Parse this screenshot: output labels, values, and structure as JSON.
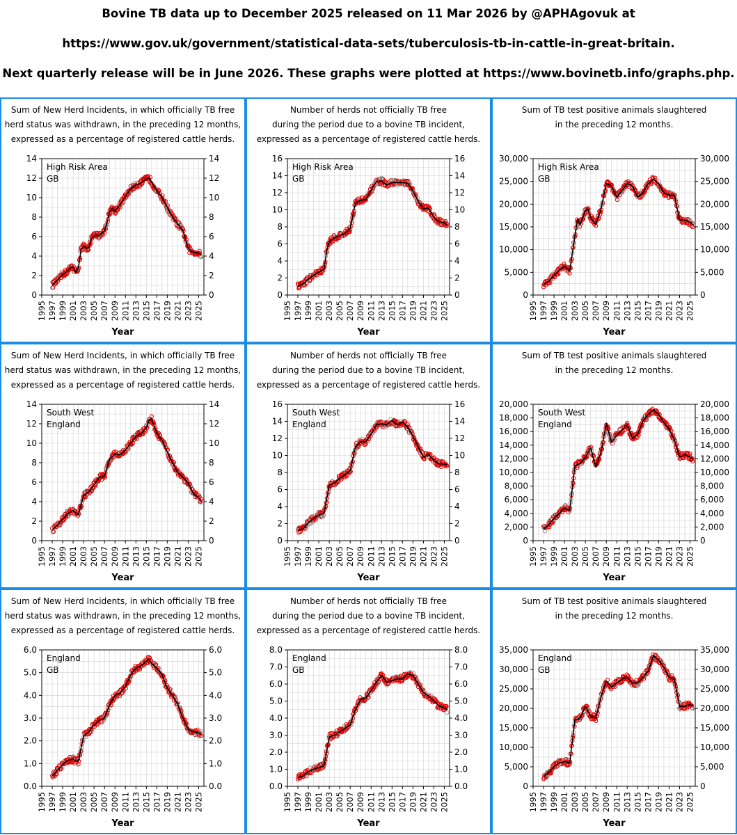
{
  "header": {
    "line1": "Bovine TB data up to December 2025 released on 11 Mar 2026 by @APHAgovuk at",
    "line2": "https://www.gov.uk/government/statistical-data-sets/tuberculosis-tb-in-cattle-in-great-britain.",
    "line3": "Next quarterly release will be in June 2026. These graphs were plotted at https://www.bovinetb.info/graphs.php."
  },
  "colors": {
    "border": "#1b8ce3",
    "points": "#e00000",
    "line": "#000000",
    "grid": "#d0d0d0"
  },
  "titles": {
    "incidents": [
      "Sum of New Herd Incidents, in which officially TB free",
      "herd status was withdrawn, in the preceding 12 months,",
      "expressed as a percentage of registered cattle herds."
    ],
    "herds": [
      "Number of herds not officially TB free",
      "during the period due to a bovine TB incident,",
      "expressed as a percentage of registered cattle herds."
    ],
    "slaughtered": [
      "Sum of TB test positive animals slaughtered",
      "in the preceding 12 months."
    ]
  },
  "chart_data": [
    {
      "type": "scatter",
      "metric": "incidents",
      "region": [
        "High Risk Area",
        "GB"
      ],
      "xlabel": "Year",
      "ylabel": "",
      "xlim": [
        1995,
        2026
      ],
      "ylim": [
        0,
        14
      ],
      "yticks": [
        0,
        2,
        4,
        6,
        8,
        10,
        12,
        14
      ],
      "xticks": [
        1995,
        1997,
        1999,
        2001,
        2003,
        2005,
        2007,
        2009,
        2011,
        2013,
        2015,
        2017,
        2019,
        2021,
        2023,
        2025
      ],
      "grid": true,
      "x": [
        1997,
        1998,
        1999,
        2000,
        2000.5,
        2001,
        2001.5,
        2002,
        2002.5,
        2003,
        2003.5,
        2004,
        2004.5,
        2005,
        2006,
        2007,
        2007.5,
        2008,
        2008.5,
        2009,
        2010,
        2011,
        2012,
        2013,
        2014,
        2015,
        2015.5,
        2016,
        2017,
        2018,
        2019,
        2020,
        2021,
        2022,
        2023,
        2023.5,
        2024,
        2025,
        2025.5
      ],
      "trend": [
        1.0,
        1.5,
        2.1,
        2.5,
        2.8,
        2.9,
        2.3,
        2.8,
        4.6,
        5.0,
        4.8,
        4.9,
        5.8,
        6.1,
        6.1,
        6.6,
        7.5,
        8.6,
        8.9,
        8.6,
        9.3,
        10.1,
        10.9,
        11.3,
        11.5,
        11.9,
        12.0,
        11.6,
        10.7,
        10.0,
        9.0,
        8.0,
        7.3,
        6.6,
        4.8,
        4.5,
        4.4,
        4.3,
        4.1
      ]
    },
    {
      "type": "scatter",
      "metric": "herds",
      "region": [
        "High Risk Area",
        "GB"
      ],
      "xlabel": "Year",
      "ylabel": "",
      "xlim": [
        1995,
        2026
      ],
      "ylim": [
        0,
        16
      ],
      "yticks": [
        0,
        2,
        4,
        6,
        8,
        10,
        12,
        14,
        16
      ],
      "xticks": [
        1995,
        1997,
        1999,
        2001,
        2003,
        2005,
        2007,
        2009,
        2011,
        2013,
        2015,
        2017,
        2019,
        2021,
        2023,
        2025
      ],
      "grid": true,
      "x": [
        1997,
        1998,
        1999,
        2000,
        2001,
        2002,
        2002.5,
        2003,
        2004,
        2005,
        2006,
        2007,
        2008,
        2009,
        2010,
        2011,
        2012,
        2013,
        2014,
        2015,
        2016,
        2017,
        2018,
        2019,
        2020,
        2021,
        2022,
        2023,
        2024,
        2025,
        2025.5
      ],
      "trend": [
        1.0,
        1.3,
        1.9,
        2.3,
        2.7,
        3.0,
        5.2,
        6.3,
        6.7,
        7.0,
        7.2,
        7.8,
        10.8,
        11.1,
        11.2,
        12.3,
        13.3,
        13.4,
        12.9,
        13.2,
        13.2,
        13.2,
        13.1,
        12.2,
        11.0,
        10.1,
        10.2,
        9.1,
        8.6,
        8.5,
        8.2
      ]
    },
    {
      "type": "scatter",
      "metric": "slaughtered",
      "region": [
        "High Risk Area",
        "GB"
      ],
      "xlabel": "Year",
      "ylabel": "",
      "xlim": [
        1995,
        2026
      ],
      "ylim": [
        0,
        30000
      ],
      "yticks": [
        0,
        5000,
        10000,
        15000,
        20000,
        25000,
        30000
      ],
      "xticks": [
        1995,
        1997,
        1999,
        2001,
        2003,
        2005,
        2007,
        2009,
        2011,
        2013,
        2015,
        2017,
        2019,
        2021,
        2023,
        2025
      ],
      "grid": true,
      "x": [
        1997,
        1998,
        1999,
        2000,
        2001,
        2002,
        2003,
        2003.5,
        2004,
        2005,
        2005.5,
        2006,
        2007,
        2008,
        2009,
        2010,
        2011,
        2012,
        2013,
        2014,
        2015,
        2016,
        2017,
        2018,
        2019,
        2020,
        2021,
        2022,
        2023,
        2024,
        2025,
        2025.5
      ],
      "trend": [
        2300,
        3000,
        4300,
        5400,
        6300,
        5300,
        13000,
        16700,
        15500,
        18500,
        19000,
        17000,
        15500,
        19000,
        24500,
        24000,
        21500,
        23000,
        24500,
        24000,
        21500,
        22500,
        24500,
        25500,
        24500,
        22500,
        22000,
        22000,
        16500,
        16500,
        16000,
        15500
      ]
    },
    {
      "type": "scatter",
      "metric": "incidents",
      "region": [
        "South West",
        "England"
      ],
      "xlabel": "Year",
      "ylabel": "",
      "xlim": [
        1995,
        2026
      ],
      "ylim": [
        0,
        14
      ],
      "yticks": [
        0,
        2,
        4,
        6,
        8,
        10,
        12,
        14
      ],
      "xticks": [
        1995,
        1997,
        1999,
        2001,
        2003,
        2005,
        2007,
        2009,
        2011,
        2013,
        2015,
        2017,
        2019,
        2021,
        2023,
        2025
      ],
      "grid": true,
      "x": [
        1997,
        1998,
        1999,
        2000,
        2001,
        2001.5,
        2002,
        2003,
        2004,
        2005,
        2006,
        2007,
        2008,
        2009,
        2010,
        2011,
        2012,
        2013,
        2014,
        2015,
        2015.5,
        2016,
        2017,
        2018,
        2019,
        2020,
        2021,
        2022,
        2023,
        2024,
        2025,
        2025.5
      ],
      "trend": [
        1.1,
        1.6,
        2.2,
        2.8,
        3.1,
        2.8,
        2.7,
        4.6,
        5.0,
        5.7,
        6.5,
        6.6,
        8.4,
        8.9,
        8.8,
        9.3,
        10.0,
        10.7,
        11.0,
        11.6,
        12.4,
        12.5,
        11.0,
        10.3,
        9.1,
        8.0,
        7.0,
        6.5,
        5.9,
        4.8,
        4.4,
        4.0
      ]
    },
    {
      "type": "scatter",
      "metric": "herds",
      "region": [
        "South West",
        "England"
      ],
      "xlabel": "Year",
      "ylabel": "",
      "xlim": [
        1995,
        2026
      ],
      "ylim": [
        0,
        16
      ],
      "yticks": [
        0,
        2,
        4,
        6,
        8,
        10,
        12,
        14,
        16
      ],
      "xticks": [
        1995,
        1997,
        1999,
        2001,
        2003,
        2005,
        2007,
        2009,
        2011,
        2013,
        2015,
        2017,
        2019,
        2021,
        2023,
        2025
      ],
      "grid": true,
      "x": [
        1997,
        1998,
        1999,
        2000,
        2001,
        2002,
        2003,
        2004,
        2005,
        2006,
        2007,
        2008,
        2009,
        2010,
        2011,
        2012,
        2013,
        2014,
        2015,
        2016,
        2017,
        2018,
        2019,
        2020,
        2021,
        2022,
        2023,
        2024,
        2025,
        2025.5
      ],
      "trend": [
        1.2,
        1.4,
        2.1,
        2.6,
        3.0,
        3.2,
        6.5,
        6.8,
        7.3,
        7.7,
        8.2,
        11.0,
        11.6,
        11.6,
        12.5,
        13.6,
        13.7,
        13.6,
        14.1,
        13.6,
        13.9,
        13.3,
        12.3,
        11.0,
        9.8,
        10.1,
        9.4,
        9.0,
        9.0,
        8.9
      ]
    },
    {
      "type": "scatter",
      "metric": "slaughtered",
      "region": [
        "South West",
        "England"
      ],
      "xlabel": "Year",
      "ylabel": "",
      "xlim": [
        1995,
        2026
      ],
      "ylim": [
        0,
        20000
      ],
      "yticks": [
        0,
        2000,
        4000,
        6000,
        8000,
        10000,
        12000,
        14000,
        16000,
        18000,
        20000
      ],
      "xticks": [
        1995,
        1997,
        1999,
        2001,
        2003,
        2005,
        2007,
        2009,
        2011,
        2013,
        2015,
        2017,
        2019,
        2021,
        2023,
        2025
      ],
      "grid": true,
      "x": [
        1997,
        1998,
        1999,
        2000,
        2001,
        2002,
        2003,
        2004,
        2005,
        2006,
        2007,
        2008,
        2009,
        2010,
        2011,
        2012,
        2013,
        2014,
        2015,
        2016,
        2017,
        2018,
        2019,
        2020,
        2021,
        2022,
        2023,
        2024,
        2025,
        2025.5
      ],
      "trend": [
        1700,
        2300,
        3300,
        4000,
        4800,
        4400,
        11000,
        11300,
        12200,
        13600,
        10800,
        13000,
        17200,
        14400,
        15500,
        16200,
        17000,
        15000,
        15600,
        17500,
        18500,
        19200,
        18500,
        17300,
        16400,
        14800,
        12300,
        12600,
        12300,
        12000
      ]
    },
    {
      "type": "scatter",
      "metric": "incidents",
      "region": [
        "England",
        "GB"
      ],
      "xlabel": "Year",
      "ylabel": "",
      "xlim": [
        1995,
        2026
      ],
      "ylim": [
        0,
        6
      ],
      "yticks": [
        0.0,
        1.0,
        2.0,
        3.0,
        4.0,
        5.0,
        6.0
      ],
      "ytick_format": "0.0",
      "xticks": [
        1995,
        1997,
        1999,
        2001,
        2003,
        2005,
        2007,
        2009,
        2011,
        2013,
        2015,
        2017,
        2019,
        2021,
        2023,
        2025
      ],
      "grid": true,
      "x": [
        1997,
        1998,
        1999,
        2000,
        2001,
        2001.5,
        2002,
        2003,
        2004,
        2005,
        2006,
        2007,
        2008,
        2009,
        2010,
        2011,
        2012,
        2013,
        2014,
        2015,
        2015.5,
        2016,
        2017,
        2018,
        2019,
        2020,
        2021,
        2022,
        2023,
        2024,
        2025,
        2025.5
      ],
      "trend": [
        0.45,
        0.7,
        0.95,
        1.15,
        1.2,
        1.1,
        1.1,
        2.2,
        2.4,
        2.7,
        2.9,
        3.0,
        3.6,
        4.0,
        4.1,
        4.4,
        4.9,
        5.2,
        5.3,
        5.5,
        5.6,
        5.4,
        5.2,
        4.9,
        4.3,
        4.0,
        3.6,
        3.0,
        2.5,
        2.4,
        2.35,
        2.3
      ]
    },
    {
      "type": "scatter",
      "metric": "herds",
      "region": [
        "England",
        "GB"
      ],
      "xlabel": "Year",
      "ylabel": "",
      "xlim": [
        1995,
        2026
      ],
      "ylim": [
        0,
        8
      ],
      "yticks": [
        0.0,
        1.0,
        2.0,
        3.0,
        4.0,
        5.0,
        6.0,
        7.0,
        8.0
      ],
      "ytick_format": "0.0",
      "xticks": [
        1995,
        1997,
        1999,
        2001,
        2003,
        2005,
        2007,
        2009,
        2011,
        2013,
        2015,
        2017,
        2019,
        2021,
        2023,
        2025
      ],
      "grid": true,
      "x": [
        1997,
        1998,
        1999,
        2000,
        2001,
        2002,
        2003,
        2004,
        2005,
        2006,
        2007,
        2008,
        2009,
        2010,
        2011,
        2012,
        2013,
        2014,
        2015,
        2016,
        2017,
        2018,
        2019,
        2020,
        2021,
        2022,
        2023,
        2024,
        2025,
        2025.5
      ],
      "trend": [
        0.5,
        0.6,
        0.85,
        1.0,
        1.1,
        1.2,
        2.9,
        3.0,
        3.2,
        3.4,
        3.6,
        4.5,
        5.1,
        5.2,
        5.6,
        6.1,
        6.5,
        6.1,
        6.2,
        6.3,
        6.3,
        6.6,
        6.5,
        6.0,
        5.5,
        5.3,
        5.0,
        4.7,
        4.6,
        4.5
      ]
    },
    {
      "type": "scatter",
      "metric": "slaughtered",
      "region": [
        "England",
        "GB"
      ],
      "xlabel": "Year",
      "ylabel": "",
      "xlim": [
        1995,
        2026
      ],
      "ylim": [
        0,
        35000
      ],
      "yticks": [
        0,
        5000,
        10000,
        15000,
        20000,
        25000,
        30000,
        35000
      ],
      "xticks": [
        1995,
        1997,
        1999,
        2001,
        2003,
        2005,
        2007,
        2009,
        2011,
        2013,
        2015,
        2017,
        2019,
        2021,
        2023,
        2025
      ],
      "grid": true,
      "x": [
        1997,
        1998,
        1999,
        2000,
        2001,
        2002,
        2003,
        2004,
        2005,
        2006,
        2007,
        2008,
        2009,
        2010,
        2011,
        2012,
        2013,
        2014,
        2015,
        2016,
        2017,
        2018,
        2019,
        2020,
        2021,
        2022,
        2023,
        2024,
        2025,
        2025.5
      ],
      "trend": [
        2500,
        3500,
        5000,
        6000,
        6300,
        6000,
        17000,
        17500,
        20500,
        18000,
        17500,
        23000,
        27000,
        25500,
        26500,
        27500,
        28000,
        26500,
        26500,
        28000,
        29500,
        33500,
        32500,
        30500,
        28000,
        27500,
        20500,
        20500,
        21000,
        20500
      ]
    }
  ]
}
